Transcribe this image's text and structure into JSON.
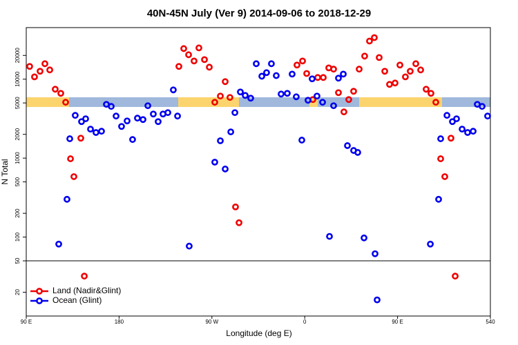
{
  "chart_data": {
    "type": "scatter",
    "title": "40N-45N July (Ver 9)   2014-09-06 to 2018-12-29",
    "x_label": "Longitude (deg E)",
    "y_label": "N Total",
    "log_y": true,
    "legend": "lower left",
    "hline": 50,
    "xlim": [
      90,
      540
    ],
    "ylim": [
      10,
      45000
    ],
    "xticks": [
      {
        "value": 90,
        "label": "90 E"
      },
      180,
      {
        "value": 270,
        "label": "90 W"
      },
      {
        "value": 360,
        "label": "0"
      },
      {
        "value": 450,
        "label": "90 E"
      },
      540
    ],
    "yticks": [
      20,
      50,
      100,
      200,
      500,
      1000,
      2000,
      5000,
      10000,
      20000
    ],
    "series": [
      {
        "name": "Land (Nadir&Glint)",
        "color": "#ee0000",
        "x": [
          93.3,
          98.0,
          103.4,
          108.1,
          112.8,
          118.1,
          123.5,
          128.2,
          132.9,
          136.2,
          142.9,
          146.3,
          238,
          242.7,
          247.4,
          252.7,
          257.4,
          262.8,
          267.5,
          272.8,
          278.2,
          282.9,
          287.5,
          292.9,
          296.3,
          352.5,
          357.9,
          361.9,
          367.9,
          372.6,
          378,
          383.3,
          388,
          392.7,
          398,
          402.7,
          407.4,
          412.8,
          418.1,
          422.8,
          427.5,
          432.2,
          437.6,
          442.2,
          447.6,
          452.3,
          457.6,
          462.3,
          467.7,
          472.4,
          477.7,
          482.4,
          487.1,
          491.8,
          495.8,
          501.8,
          505.9
        ],
        "values": [
          14500,
          10700,
          12600,
          15700,
          13100,
          7460,
          6620,
          5100,
          982,
          583,
          1790,
          32,
          14500,
          24400,
          20400,
          17000,
          24900,
          17700,
          14200,
          5100,
          6110,
          9310,
          5870,
          241,
          152,
          15100,
          17000,
          11800,
          5520,
          10500,
          10500,
          13900,
          13400,
          6750,
          3850,
          5520,
          7030,
          13400,
          19600,
          30400,
          33600,
          18800,
          12600,
          8590,
          8940,
          15100,
          10700,
          12600,
          15700,
          13100,
          7460,
          6620,
          5100,
          982,
          583,
          1790,
          32
        ]
      },
      {
        "name": "Ocean (Glint)",
        "color": "#0000ee",
        "x": [
          121.5,
          129.5,
          132.2,
          137.5,
          143.6,
          147.6,
          152.3,
          157.6,
          163,
          167.7,
          172.4,
          177.1,
          182.4,
          187.8,
          193.1,
          197.8,
          203.2,
          207.9,
          213.2,
          217.9,
          222.6,
          227.3,
          232.6,
          236.7,
          248,
          272.8,
          278.2,
          282.9,
          288.3,
          292.3,
          297.6,
          302.3,
          307.6,
          313,
          318.4,
          323,
          327.7,
          332.4,
          337.1,
          343.1,
          347.8,
          351.8,
          357.2,
          363.2,
          367.2,
          371.9,
          377.3,
          384,
          388,
          392.7,
          397.4,
          401.4,
          407.4,
          411.4,
          417.5,
          428.2,
          430.2,
          481.8,
          489.8,
          491.8,
          497.9,
          503.2,
          507.2,
          512.6,
          517.9,
          523.3,
          527.3,
          532,
          537.3
        ],
        "values": [
          81.5,
          301,
          1760,
          3480,
          2900,
          3150,
          2330,
          2110,
          2190,
          4800,
          4520,
          3410,
          2520,
          2960,
          1720,
          3210,
          3080,
          4610,
          3620,
          2900,
          3620,
          3770,
          7310,
          3410,
          76.8,
          889,
          1660,
          728,
          2150,
          3770,
          6890,
          6230,
          5750,
          15700,
          10900,
          12100,
          15700,
          11100,
          6480,
          6620,
          11600,
          5980,
          1690,
          5410,
          10100,
          6110,
          5100,
          102,
          4610,
          10300,
          11600,
          1440,
          1250,
          1180,
          97.6,
          61.5,
          16.0,
          81.5,
          301,
          1760,
          3480,
          2900,
          3150,
          2330,
          2110,
          2190,
          4800,
          4520,
          3410
        ]
      }
    ]
  }
}
